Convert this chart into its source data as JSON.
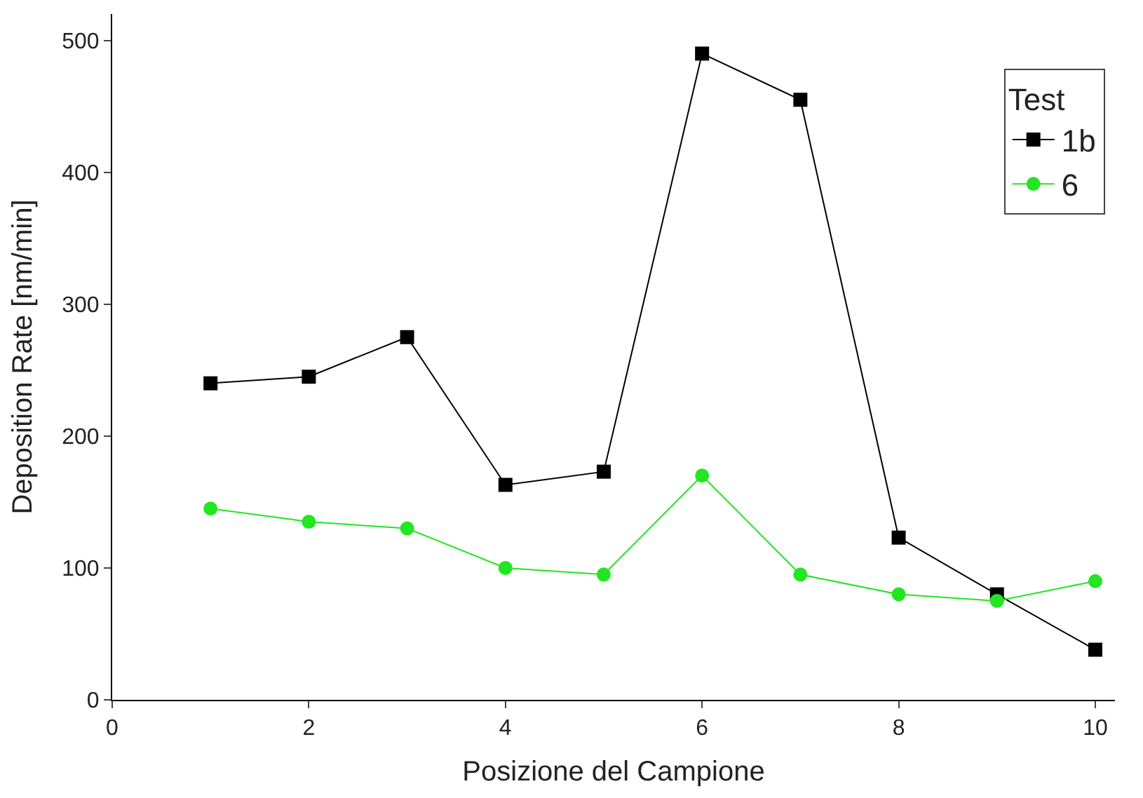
{
  "chart_data": {
    "type": "line",
    "xlabel": "Posizione del Campione",
    "ylabel": "Deposition Rate [nm/min]",
    "legend_title": "Test",
    "x": [
      1,
      2,
      3,
      4,
      5,
      6,
      7,
      8,
      9,
      10
    ],
    "series": [
      {
        "name": "1b",
        "color": "#000000",
        "marker": "square",
        "values": [
          240,
          245,
          275,
          163,
          173,
          490,
          455,
          123,
          80,
          38
        ]
      },
      {
        "name": "6",
        "color": "#22e622",
        "marker": "circle",
        "values": [
          145,
          135,
          130,
          100,
          95,
          170,
          95,
          80,
          75,
          90
        ]
      }
    ],
    "xlim": [
      0,
      10.2
    ],
    "xticks": [
      0,
      2,
      4,
      6,
      8,
      10
    ],
    "ylim": [
      0,
      520
    ],
    "yticks": [
      0,
      100,
      200,
      300,
      400,
      500
    ],
    "legend": "top right",
    "line_style": "solid"
  }
}
